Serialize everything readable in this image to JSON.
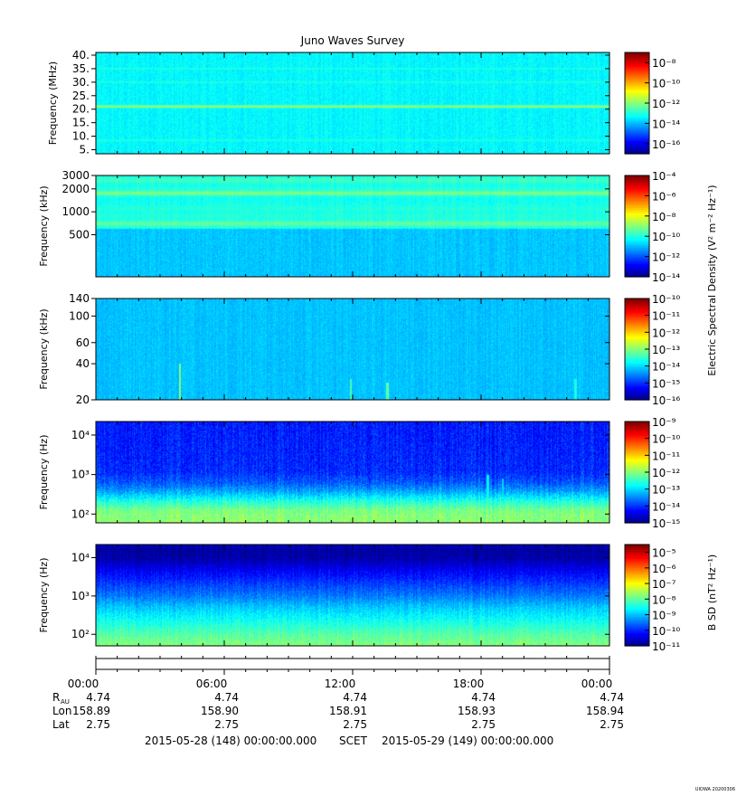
{
  "title": "Juno Waves Survey",
  "footer_stamp": "UIOWA 20200306",
  "x_axis": {
    "time_ticks": [
      "00:00",
      "06:00",
      "12:00",
      "18:00",
      "00:00"
    ],
    "ephemeris": [
      {
        "label": "R",
        "sub": "AU",
        "values": [
          "4.74",
          "4.74",
          "4.74",
          "4.74",
          "4.74"
        ]
      },
      {
        "label": "Lon",
        "sub": "",
        "values": [
          "158.89",
          "158.90",
          "158.91",
          "158.93",
          "158.94"
        ]
      },
      {
        "label": "Lat",
        "sub": "",
        "values": [
          "2.75",
          "2.75",
          "2.75",
          "2.75",
          "2.75"
        ]
      }
    ],
    "range_start": "2015-05-28 (148) 00:00:00.000",
    "range_mid": "SCET",
    "range_end": "2015-05-29 (149) 00:00:00.000"
  },
  "colorbar_labels": {
    "electric": "Electric Spectral Density (V² m⁻² Hz⁻¹)",
    "magnetic": "B SD (nT² Hz⁻¹)"
  },
  "chart_data": [
    {
      "type": "heatmap",
      "ylabel": "Frequency (MHz)",
      "yscale": "linear",
      "ylim": [
        3.5,
        41
      ],
      "yticks": [
        5,
        10,
        15,
        20,
        25,
        30,
        35,
        40
      ],
      "ytick_labels": [
        "5.",
        "10.",
        "15.",
        "20.",
        "25.",
        "30.",
        "35.",
        "40."
      ],
      "xlim_hours": [
        0,
        24
      ],
      "colorbar": {
        "log_range": [
          -17,
          -7
        ],
        "ticks": [
          -16,
          -14,
          -12,
          -10,
          -8
        ]
      },
      "base_level": -13.3,
      "noise": 0.25,
      "bands": [
        {
          "f": 21,
          "w": 0.45,
          "level": -11.6
        },
        {
          "f": 8.5,
          "w": 0.35,
          "level": -12.9
        },
        {
          "f": 30,
          "w": 0.3,
          "level": -12.9
        },
        {
          "f": 35,
          "w": 0.3,
          "level": -12.9
        }
      ],
      "spikes": []
    },
    {
      "type": "heatmap",
      "ylabel": "Frequency (kHz)",
      "yscale": "log",
      "ylim": [
        140,
        3000
      ],
      "yticks": [
        500,
        1000,
        2000,
        3000
      ],
      "ytick_labels": [
        "500",
        "1000",
        "2000",
        "3000"
      ],
      "xlim_hours": [
        0,
        24
      ],
      "colorbar": {
        "log_range": [
          -14,
          -4
        ],
        "ticks": [
          -14,
          -12,
          -10,
          -8,
          -6,
          -4
        ]
      },
      "base_level": -10.8,
      "noise": 0.25,
      "bands": [
        {
          "f": 2600,
          "w": 0.04,
          "level": -9.6
        },
        {
          "f": 2000,
          "w": 0.04,
          "level": -9.9
        },
        {
          "f": 1750,
          "w": 0.03,
          "level": -9.0
        },
        {
          "f": 1100,
          "w": 0.05,
          "level": -9.9
        },
        {
          "f": 700,
          "w": 0.04,
          "level": -9.3
        },
        {
          "f": 880,
          "w": 0.05,
          "level": -9.9
        }
      ],
      "upper_level": -10.1,
      "upper_from": 600,
      "spikes": []
    },
    {
      "type": "heatmap",
      "ylabel": "Frequency (kHz)",
      "yscale": "log",
      "ylim": [
        20,
        140
      ],
      "yticks": [
        20,
        40,
        60,
        100,
        140
      ],
      "ytick_labels": [
        "20",
        "40",
        "60",
        "100",
        "140"
      ],
      "xlim_hours": [
        0,
        24
      ],
      "colorbar": {
        "log_range": [
          -16,
          -10
        ],
        "ticks": [
          -16,
          -15,
          -14,
          -13,
          -12,
          -11,
          -10
        ]
      },
      "base_level": -14.1,
      "noise": 0.15,
      "bands": [],
      "spikes": [
        {
          "t": 3.9,
          "fmax": 40,
          "level": -13.0
        },
        {
          "t": 11.9,
          "fmax": 30,
          "level": -13.3
        },
        {
          "t": 13.6,
          "fmax": 28,
          "level": -13.2
        },
        {
          "t": 22.4,
          "fmax": 30,
          "level": -13.6
        }
      ]
    },
    {
      "type": "heatmap",
      "ylabel": "Frequency (Hz)",
      "yscale": "log",
      "ylim": [
        60,
        22000
      ],
      "yticks": [
        100,
        1000,
        10000
      ],
      "ytick_labels": [
        "10²",
        "10³",
        "10⁴"
      ],
      "xlim_hours": [
        0,
        24
      ],
      "colorbar": {
        "log_range": [
          -15,
          -9
        ],
        "ticks": [
          -15,
          -14,
          -13,
          -12,
          -11,
          -10,
          -9
        ]
      },
      "profile": [
        [
          60,
          -11.9
        ],
        [
          120,
          -12.0
        ],
        [
          200,
          -12.5
        ],
        [
          350,
          -13.2
        ],
        [
          600,
          -13.7
        ],
        [
          1200,
          -14.0
        ],
        [
          5000,
          -14.05
        ],
        [
          22000,
          -14.1
        ]
      ],
      "noise": 0.3,
      "bands": [],
      "spikes": [
        {
          "t": 18.3,
          "fmax": 1000,
          "level": -12.8
        },
        {
          "t": 19.0,
          "fmax": 800,
          "level": -13.0
        }
      ]
    },
    {
      "type": "heatmap",
      "ylabel": "Frequency (Hz)",
      "yscale": "log",
      "ylim": [
        50,
        22000
      ],
      "yticks": [
        100,
        1000,
        10000
      ],
      "ytick_labels": [
        "10²",
        "10³",
        "10⁴"
      ],
      "xlim_hours": [
        0,
        24
      ],
      "colorbar": {
        "log_range": [
          -11,
          -4.5
        ],
        "ticks": [
          -11,
          -10,
          -9,
          -8,
          -7,
          -6,
          -5
        ]
      },
      "profile": [
        [
          50,
          -7.7
        ],
        [
          100,
          -8.0
        ],
        [
          200,
          -8.4
        ],
        [
          500,
          -8.9
        ],
        [
          1000,
          -9.4
        ],
        [
          2500,
          -9.9
        ],
        [
          5000,
          -10.3
        ],
        [
          9000,
          -10.7
        ],
        [
          15000,
          -10.8
        ],
        [
          22000,
          -10.6
        ]
      ],
      "noise": 0.25,
      "bands": [],
      "spikes": []
    }
  ]
}
